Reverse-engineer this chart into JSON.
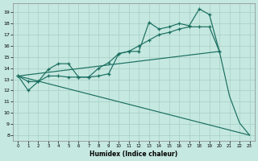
{
  "xlabel": "Humidex (Indice chaleur)",
  "bg_color": "#c5e8e0",
  "grid_color": "#a8cfc4",
  "line_color": "#1a6e60",
  "xlim": [
    -0.5,
    23.5
  ],
  "ylim": [
    7.5,
    19.8
  ],
  "yticks": [
    8,
    9,
    10,
    11,
    12,
    13,
    14,
    15,
    16,
    17,
    18,
    19
  ],
  "xticks": [
    0,
    1,
    2,
    3,
    4,
    5,
    6,
    7,
    8,
    9,
    10,
    11,
    12,
    13,
    14,
    15,
    16,
    17,
    18,
    19,
    20,
    21,
    22,
    23
  ],
  "line1_x": [
    0,
    1,
    2,
    3,
    4,
    5,
    6,
    7,
    8,
    9,
    10,
    11,
    12,
    13,
    14,
    15,
    16,
    17,
    18,
    19,
    20
  ],
  "line1_y": [
    13.3,
    12.0,
    12.8,
    13.9,
    14.4,
    14.4,
    13.2,
    13.2,
    13.3,
    13.5,
    15.3,
    15.5,
    15.5,
    18.1,
    17.5,
    17.7,
    18.0,
    17.8,
    19.3,
    18.8,
    15.5
  ],
  "line2_x": [
    0,
    1,
    2,
    3,
    4,
    5,
    6,
    7,
    8,
    9,
    10,
    11,
    12,
    13,
    14,
    15,
    16,
    17,
    18,
    19,
    20
  ],
  "line2_y": [
    13.3,
    12.8,
    12.8,
    13.3,
    13.3,
    13.2,
    13.2,
    13.2,
    14.0,
    14.5,
    15.3,
    15.5,
    16.0,
    16.5,
    17.0,
    17.2,
    17.5,
    17.7,
    17.7,
    17.7,
    15.5
  ],
  "line3_x": [
    0,
    20,
    21,
    22,
    23
  ],
  "line3_y": [
    13.3,
    15.5,
    11.5,
    9.1,
    8.0
  ],
  "line4_x": [
    0,
    23
  ],
  "line4_y": [
    13.3,
    8.0
  ],
  "lw": 0.85,
  "ms": 3.5
}
